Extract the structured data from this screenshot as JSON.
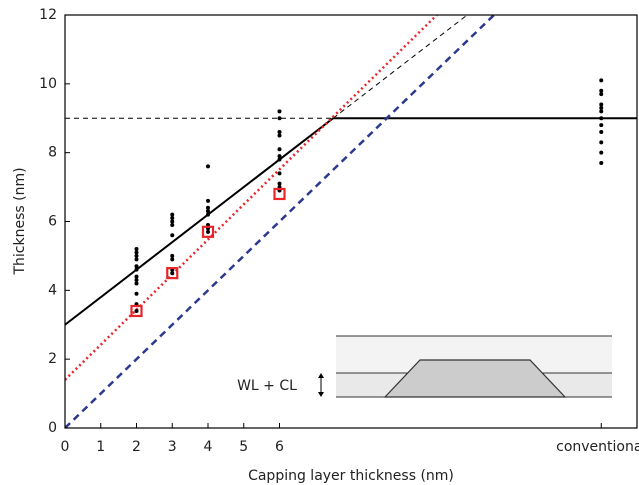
{
  "chart_data": {
    "type": "scatter",
    "xlabel": "Capping layer thickness (nm)",
    "ylabel": "Thickness (nm)",
    "annotation": "WL + CL",
    "xlim": [
      0,
      16
    ],
    "ylim": [
      0,
      12
    ],
    "xticks": [
      0,
      1,
      2,
      3,
      4,
      5,
      6,
      {
        "value": 15,
        "label": "conventional"
      }
    ],
    "yticks": [
      0,
      2,
      4,
      6,
      8,
      10,
      12
    ],
    "series": [
      {
        "style": "line",
        "color": "#000000",
        "dash": "solid",
        "x": [
          0,
          7.5,
          16
        ],
        "values": [
          3,
          9,
          9
        ]
      },
      {
        "style": "line",
        "color": "#000000",
        "dash": "thin-dashed",
        "x": [
          7.5,
          11.25
        ],
        "values": [
          9,
          12
        ]
      },
      {
        "style": "line",
        "color": "#000000",
        "dash": "thin-dashed",
        "x": [
          0,
          7.5
        ],
        "values": [
          9,
          9
        ]
      },
      {
        "style": "line",
        "color": "#e8262a",
        "dash": "dotted",
        "x": [
          0,
          10.4
        ],
        "values": [
          1.4,
          12
        ]
      },
      {
        "style": "line",
        "color": "#2b3a8f",
        "dash": "dashed",
        "x": [
          0,
          12
        ],
        "values": [
          0,
          12
        ]
      },
      {
        "style": "dots",
        "color": "#000000",
        "x": [
          2,
          2,
          2,
          2,
          2,
          2,
          2,
          2,
          2,
          2,
          2,
          2,
          3,
          3,
          3,
          3,
          3,
          3,
          3,
          3,
          3,
          4,
          4,
          4,
          4,
          4,
          4,
          4,
          4,
          6,
          6,
          6,
          6,
          6,
          6,
          6,
          6,
          6,
          6,
          6,
          15,
          15,
          15,
          15,
          15,
          15,
          15,
          15,
          15,
          15,
          15,
          15
        ],
        "values": [
          3.4,
          3.6,
          3.9,
          4.2,
          4.3,
          4.4,
          4.6,
          4.7,
          4.9,
          5.0,
          5.1,
          5.2,
          4.5,
          4.6,
          4.9,
          5.0,
          5.6,
          5.9,
          6.0,
          6.1,
          6.2,
          5.7,
          5.8,
          5.9,
          6.2,
          6.3,
          6.4,
          6.6,
          7.6,
          6.9,
          7.0,
          7.1,
          7.4,
          7.8,
          7.9,
          8.1,
          8.5,
          8.6,
          9.0,
          9.2,
          7.7,
          8.0,
          8.3,
          8.6,
          8.8,
          9.0,
          9.2,
          9.3,
          9.4,
          9.7,
          9.8,
          10.1
        ]
      },
      {
        "style": "squares",
        "color": "#e8262a",
        "x": [
          2,
          3,
          4,
          6
        ],
        "values": [
          3.4,
          4.5,
          5.7,
          6.8
        ]
      }
    ]
  }
}
